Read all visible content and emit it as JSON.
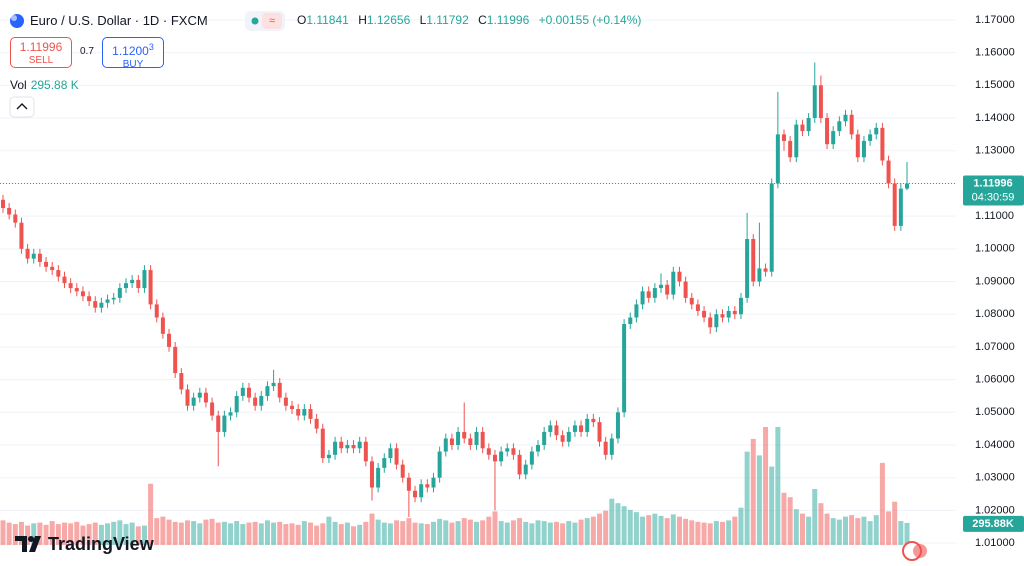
{
  "chart_data": {
    "type": "candlestick",
    "title": "Euro / U.S. Dollar · 1D · FXCM",
    "ohlc_legend": {
      "o_label": "O",
      "open": 1.11841,
      "h_label": "H",
      "high": 1.12656,
      "l_label": "L",
      "low": 1.11792,
      "c_label": "C",
      "close": 1.11996,
      "change": "+0.00155 (+0.14%)"
    },
    "trade": {
      "sell_price": 1.11996,
      "sell_label": "SELL",
      "spread": 0.7,
      "buy_price": "1.1200",
      "buy_price_small": "3",
      "buy_label": "BUY"
    },
    "volume_legend": {
      "label": "Vol",
      "value": "295.88 K"
    },
    "last_price_label": "1.11996",
    "countdown": "04:30:59",
    "last_volume_label": "295.88K",
    "logo": "TradingView",
    "open": [
      1.115,
      1.1125,
      1.1105,
      1.108,
      1.1,
      1.097,
      1.0985,
      1.096,
      1.0945,
      1.0935,
      1.0915,
      1.0895,
      1.088,
      1.087,
      1.0855,
      1.084,
      1.082,
      1.0835,
      1.0845,
      1.085,
      1.088,
      1.0895,
      1.0905,
      1.088,
      1.0935,
      1.083,
      1.079,
      1.074,
      1.07,
      1.062,
      1.057,
      1.052,
      1.0545,
      1.056,
      1.053,
      1.049,
      1.044,
      1.049,
      1.05,
      1.055,
      1.0575,
      1.0545,
      1.052,
      1.055,
      1.058,
      1.059,
      1.0545,
      1.052,
      1.051,
      1.049,
      1.051,
      1.048,
      1.045,
      1.036,
      1.037,
      1.041,
      1.039,
      1.04,
      1.039,
      1.041,
      1.035,
      1.027,
      1.033,
      1.036,
      1.039,
      1.034,
      1.03,
      1.026,
      1.024,
      1.028,
      1.027,
      1.03,
      1.038,
      1.042,
      1.04,
      1.044,
      1.042,
      1.04,
      1.044,
      1.039,
      1.037,
      1.035,
      1.038,
      1.039,
      1.037,
      1.031,
      1.034,
      1.038,
      1.04,
      1.044,
      1.046,
      1.043,
      1.041,
      1.044,
      1.046,
      1.044,
      1.048,
      1.047,
      1.041,
      1.037,
      1.042,
      1.05,
      1.077,
      1.079,
      1.083,
      1.087,
      1.085,
      1.088,
      1.089,
      1.086,
      1.093,
      1.09,
      1.085,
      1.083,
      1.081,
      1.079,
      1.076,
      1.08,
      1.079,
      1.081,
      1.08,
      1.085,
      1.103,
      1.09,
      1.094,
      1.093,
      1.12,
      1.135,
      1.133,
      1.128,
      1.138,
      1.136,
      1.14,
      1.15,
      1.14,
      1.132,
      1.136,
      1.139,
      1.141,
      1.135,
      1.128,
      1.133,
      1.135,
      1.137,
      1.127,
      1.12,
      1.107,
      1.11841
    ],
    "high": [
      1.1165,
      1.114,
      1.112,
      1.1095,
      1.1015,
      1.1,
      1.1,
      1.0975,
      1.096,
      1.095,
      1.093,
      1.091,
      1.0895,
      1.0885,
      1.087,
      1.0855,
      1.085,
      1.086,
      1.0865,
      1.0895,
      1.091,
      1.092,
      1.092,
      1.095,
      1.095,
      1.0845,
      1.0805,
      1.0755,
      1.0715,
      1.0635,
      1.0585,
      1.056,
      1.0575,
      1.0575,
      1.0545,
      1.0505,
      1.0505,
      1.0515,
      1.0565,
      1.059,
      1.059,
      1.056,
      1.0565,
      1.0595,
      1.063,
      1.0605,
      1.056,
      1.0535,
      1.0525,
      1.0525,
      1.0525,
      1.0495,
      1.0465,
      1.0385,
      1.0425,
      1.0425,
      1.0415,
      1.0415,
      1.0425,
      1.0425,
      1.0365,
      1.0345,
      1.0375,
      1.0405,
      1.0405,
      1.0355,
      1.0315,
      1.0275,
      1.0295,
      1.0295,
      1.0315,
      1.0395,
      1.0435,
      1.0435,
      1.0455,
      1.053,
      1.0435,
      1.0455,
      1.0455,
      1.0405,
      1.0385,
      1.0395,
      1.0405,
      1.0405,
      1.0385,
      1.0355,
      1.0395,
      1.0415,
      1.0455,
      1.0475,
      1.0475,
      1.0445,
      1.0455,
      1.0475,
      1.0475,
      1.0495,
      1.0495,
      1.0485,
      1.0425,
      1.0435,
      1.0515,
      1.0785,
      1.0805,
      1.0845,
      1.0885,
      1.0885,
      1.0895,
      1.0925,
      1.0905,
      1.0945,
      1.0945,
      1.0915,
      1.0865,
      1.0845,
      1.0825,
      1.0805,
      1.0815,
      1.0815,
      1.0825,
      1.0825,
      1.0865,
      1.111,
      1.1045,
      1.108,
      1.0955,
      1.1215,
      1.148,
      1.1365,
      1.1345,
      1.1395,
      1.1395,
      1.1415,
      1.157,
      1.153,
      1.1415,
      1.1375,
      1.1405,
      1.1425,
      1.1425,
      1.1365,
      1.1345,
      1.1365,
      1.1385,
      1.1385,
      1.1285,
      1.1215,
      1.12,
      1.12656
    ],
    "low": [
      1.111,
      1.109,
      1.1065,
      1.0985,
      1.0955,
      1.0955,
      1.0945,
      1.093,
      1.092,
      1.09,
      1.088,
      1.0865,
      1.0855,
      1.084,
      1.0825,
      1.0805,
      1.0805,
      1.082,
      1.083,
      1.0835,
      1.0865,
      1.088,
      1.0865,
      1.0865,
      1.0815,
      1.0775,
      1.0725,
      1.0685,
      1.0605,
      1.0555,
      1.0505,
      1.0505,
      1.053,
      1.0515,
      1.0475,
      1.0335,
      1.0425,
      1.0475,
      1.0485,
      1.0535,
      1.053,
      1.0505,
      1.0505,
      1.0535,
      1.0565,
      1.053,
      1.0505,
      1.0495,
      1.0475,
      1.0475,
      1.0465,
      1.0435,
      1.0345,
      1.0345,
      1.0355,
      1.0375,
      1.0375,
      1.0375,
      1.0375,
      1.0335,
      1.023,
      1.0255,
      1.0315,
      1.0345,
      1.0325,
      1.0285,
      1.018,
      1.0225,
      1.0225,
      1.0255,
      1.0255,
      1.0285,
      1.0365,
      1.0385,
      1.0385,
      1.0405,
      1.0385,
      1.0385,
      1.0375,
      1.0355,
      1.02,
      1.0335,
      1.0365,
      1.0355,
      1.0295,
      1.0295,
      1.0325,
      1.0365,
      1.0385,
      1.0425,
      1.0415,
      1.0395,
      1.0395,
      1.0425,
      1.0425,
      1.0425,
      1.0455,
      1.0395,
      1.0355,
      1.0355,
      1.0405,
      1.0485,
      1.0755,
      1.0775,
      1.0815,
      1.0835,
      1.0835,
      1.0865,
      1.0845,
      1.0845,
      1.0885,
      1.0835,
      1.0815,
      1.0795,
      1.0775,
      1.074,
      1.0745,
      1.0775,
      1.0775,
      1.0785,
      1.0785,
      1.0835,
      1.0885,
      1.0885,
      1.0915,
      1.0915,
      1.1185,
      1.13,
      1.1265,
      1.1265,
      1.1345,
      1.1345,
      1.1385,
      1.1385,
      1.1305,
      1.1305,
      1.1345,
      1.1375,
      1.1335,
      1.1265,
      1.1265,
      1.1315,
      1.1335,
      1.1255,
      1.1185,
      1.1055,
      1.1055,
      1.11792
    ],
    "close": [
      1.1125,
      1.1105,
      1.108,
      1.1,
      1.097,
      1.0985,
      1.096,
      1.0945,
      1.0935,
      1.0915,
      1.0895,
      1.088,
      1.087,
      1.0855,
      1.084,
      1.082,
      1.0835,
      1.0845,
      1.085,
      1.088,
      1.0895,
      1.0905,
      1.088,
      1.0935,
      1.083,
      1.079,
      1.074,
      1.07,
      1.062,
      1.057,
      1.052,
      1.0545,
      1.056,
      1.053,
      1.049,
      1.044,
      1.049,
      1.05,
      1.055,
      1.0575,
      1.0545,
      1.052,
      1.055,
      1.058,
      1.059,
      1.0545,
      1.052,
      1.051,
      1.049,
      1.051,
      1.048,
      1.045,
      1.036,
      1.037,
      1.041,
      1.039,
      1.04,
      1.039,
      1.041,
      1.035,
      1.027,
      1.033,
      1.036,
      1.039,
      1.034,
      1.03,
      1.026,
      1.024,
      1.028,
      1.027,
      1.03,
      1.038,
      1.042,
      1.04,
      1.044,
      1.042,
      1.04,
      1.044,
      1.039,
      1.037,
      1.035,
      1.038,
      1.039,
      1.037,
      1.031,
      1.034,
      1.038,
      1.04,
      1.044,
      1.046,
      1.043,
      1.041,
      1.044,
      1.046,
      1.044,
      1.048,
      1.047,
      1.041,
      1.037,
      1.042,
      1.05,
      1.077,
      1.079,
      1.083,
      1.087,
      1.085,
      1.088,
      1.089,
      1.086,
      1.093,
      1.09,
      1.085,
      1.083,
      1.081,
      1.079,
      1.076,
      1.08,
      1.079,
      1.081,
      1.08,
      1.085,
      1.103,
      1.09,
      1.094,
      1.093,
      1.12,
      1.135,
      1.133,
      1.128,
      1.138,
      1.136,
      1.14,
      1.15,
      1.14,
      1.132,
      1.136,
      1.139,
      1.141,
      1.135,
      1.128,
      1.133,
      1.135,
      1.137,
      1.127,
      1.12,
      1.107,
      1.11841,
      1.11996
    ],
    "volume": [
      330,
      300,
      280,
      310,
      260,
      290,
      300,
      270,
      320,
      280,
      300,
      290,
      310,
      260,
      280,
      300,
      270,
      290,
      310,
      330,
      280,
      300,
      250,
      260,
      820,
      360,
      380,
      340,
      310,
      300,
      330,
      320,
      290,
      340,
      350,
      300,
      310,
      290,
      320,
      280,
      300,
      310,
      290,
      330,
      300,
      310,
      280,
      290,
      270,
      320,
      300,
      260,
      290,
      380,
      310,
      280,
      300,
      250,
      270,
      310,
      420,
      340,
      300,
      290,
      330,
      320,
      360,
      300,
      290,
      280,
      310,
      350,
      330,
      300,
      320,
      360,
      340,
      310,
      330,
      380,
      450,
      320,
      300,
      330,
      360,
      310,
      290,
      330,
      320,
      300,
      310,
      290,
      320,
      300,
      340,
      360,
      380,
      420,
      460,
      620,
      560,
      520,
      470,
      440,
      380,
      400,
      420,
      390,
      360,
      410,
      380,
      350,
      330,
      310,
      300,
      290,
      320,
      310,
      330,
      380,
      500,
      1250,
      1420,
      1200,
      1580,
      1050,
      1580,
      700,
      640,
      480,
      420,
      380,
      750,
      560,
      420,
      360,
      340,
      380,
      400,
      360,
      380,
      320,
      400,
      1100,
      450,
      580,
      320,
      295.88
    ],
    "up_color": "#26a69a",
    "down_color": "#ef5350",
    "ylim": [
      1.0085,
      1.1761
    ],
    "yticks": [
      {
        "value": 1.01,
        "label": "1.01000"
      },
      {
        "value": 1.02,
        "label": "1.02000"
      },
      {
        "value": 1.03,
        "label": "1.03000"
      },
      {
        "value": 1.04,
        "label": "1.04000"
      },
      {
        "value": 1.05,
        "label": "1.05000"
      },
      {
        "value": 1.06,
        "label": "1.06000"
      },
      {
        "value": 1.07,
        "label": "1.07000"
      },
      {
        "value": 1.08,
        "label": "1.08000"
      },
      {
        "value": 1.09,
        "label": "1.09000"
      },
      {
        "value": 1.1,
        "label": "1.10000"
      },
      {
        "value": 1.11,
        "label": "1.11000"
      },
      {
        "value": 1.12,
        "label": "1.12000"
      },
      {
        "value": 1.13,
        "label": "1.13000"
      },
      {
        "value": 1.14,
        "label": "1.14000"
      },
      {
        "value": 1.15,
        "label": "1.15000"
      },
      {
        "value": 1.16,
        "label": "1.16000"
      },
      {
        "value": 1.17,
        "label": "1.17000"
      }
    ],
    "grid": true
  }
}
